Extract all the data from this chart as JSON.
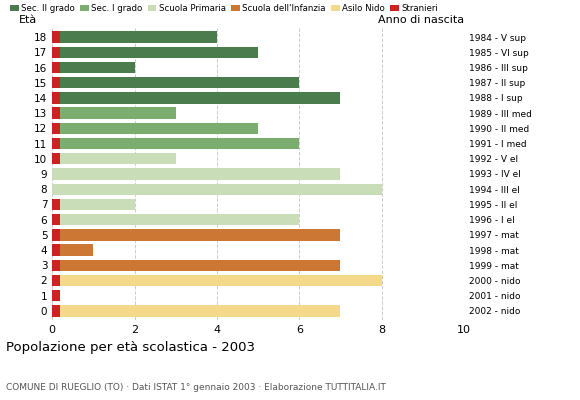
{
  "ages": [
    18,
    17,
    16,
    15,
    14,
    13,
    12,
    11,
    10,
    9,
    8,
    7,
    6,
    5,
    4,
    3,
    2,
    1,
    0
  ],
  "values": [
    4,
    5,
    2,
    6,
    7,
    3,
    5,
    6,
    3,
    7,
    8,
    2,
    6,
    7,
    1,
    7,
    8,
    0,
    7
  ],
  "colors": [
    "#4a7c4e",
    "#4a7c4e",
    "#4a7c4e",
    "#4a7c4e",
    "#4a7c4e",
    "#7aad6e",
    "#7aad6e",
    "#7aad6e",
    "#c8ddb8",
    "#c8ddb8",
    "#c8ddb8",
    "#c8ddb8",
    "#c8ddb8",
    "#cc7733",
    "#cc7733",
    "#cc7733",
    "#f5d98b",
    "#f5d98b",
    "#f5d98b"
  ],
  "stranieri_marker": [
    1,
    1,
    1,
    1,
    1,
    1,
    1,
    1,
    1,
    0,
    0,
    1,
    1,
    1,
    1,
    1,
    1,
    1,
    1
  ],
  "right_labels": [
    "1984 - V sup",
    "1985 - VI sup",
    "1986 - III sup",
    "1987 - II sup",
    "1988 - I sup",
    "1989 - III med",
    "1990 - II med",
    "1991 - I med",
    "1992 - V el",
    "1993 - IV el",
    "1994 - III el",
    "1995 - II el",
    "1996 - I el",
    "1997 - mat",
    "1998 - mat",
    "1999 - mat",
    "2000 - nido",
    "2001 - nido",
    "2002 - nido"
  ],
  "legend_labels": [
    "Sec. II grado",
    "Sec. I grado",
    "Scuola Primaria",
    "Scuola dell'Infanzia",
    "Asilo Nido",
    "Stranieri"
  ],
  "legend_colors": [
    "#4a7c4e",
    "#7aad6e",
    "#c8ddb8",
    "#cc7733",
    "#f5d98b",
    "#cc2222"
  ],
  "title": "Popolazione per età scolastica - 2003",
  "subtitle": "COMUNE DI RUEGLIO (TO) · Dati ISTAT 1° gennaio 2003 · Elaborazione TUTTITALIA.IT",
  "xlabel_left": "Età",
  "xlabel_right": "Anno di nascita",
  "xlim": [
    0,
    10
  ],
  "stranieri_color": "#cc2222",
  "bar_height": 0.75,
  "background_color": "#ffffff",
  "grid_color": "#cccccc"
}
